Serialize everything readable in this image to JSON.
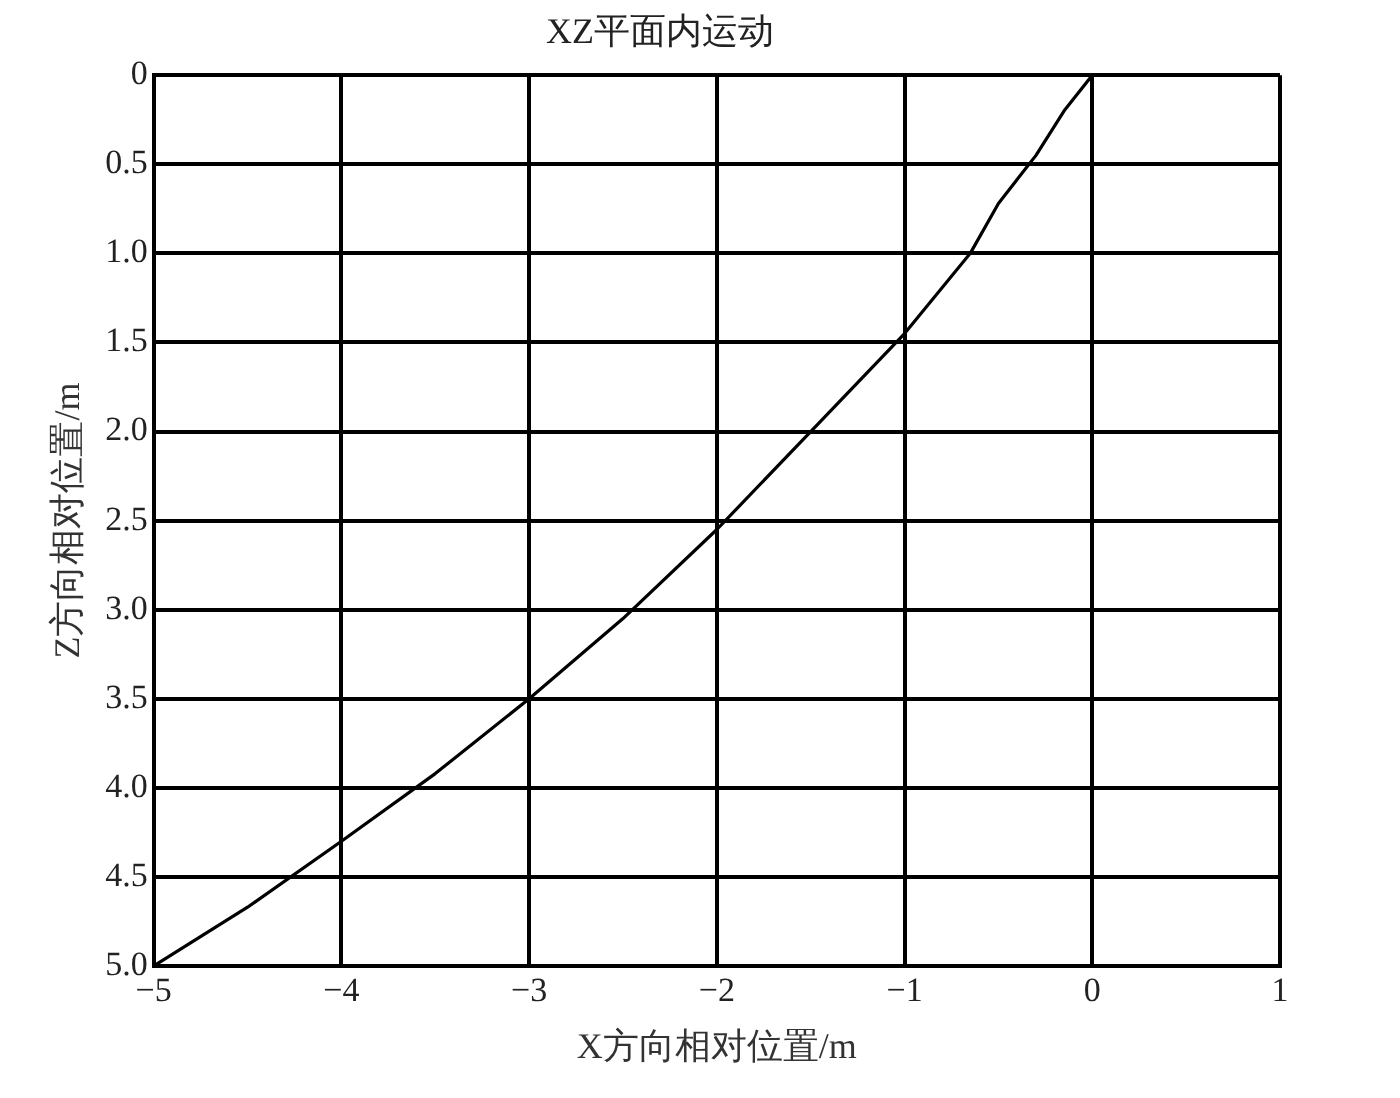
{
  "chart_data": {
    "type": "line",
    "title": "XZ平面内运动",
    "xlabel": "X方向相对位置/m",
    "ylabel": "Z方向相对位置/m",
    "xlim": [
      -5,
      1
    ],
    "xticks": [
      {
        "value": -5,
        "label": "−5"
      },
      {
        "value": -4,
        "label": "−4"
      },
      {
        "value": -3,
        "label": "−3"
      },
      {
        "value": -2,
        "label": "−2"
      },
      {
        "value": -1,
        "label": "−1"
      },
      0,
      1
    ],
    "ylim": [
      5,
      0
    ],
    "yticks": [
      0,
      0.5,
      {
        "value": 1,
        "label": "1.0"
      },
      1.5,
      {
        "value": 2,
        "label": "2.0"
      },
      2.5,
      {
        "value": 3,
        "label": "3.0"
      },
      3.5,
      {
        "value": 4,
        "label": "4.0"
      },
      4.5,
      {
        "value": 5,
        "label": "5.0"
      }
    ],
    "grid": true,
    "legend": false,
    "marker": "none",
    "line_style": "solid",
    "series": [
      {
        "color": "#000000",
        "x": [
          0,
          -0.15,
          -0.3,
          -0.5,
          -0.65,
          -1,
          -1.5,
          -2,
          -2.5,
          -3,
          -3.5,
          -4,
          -4.5,
          -5
        ],
        "values": [
          0,
          0.2,
          0.45,
          0.72,
          1.0,
          1.45,
          2.0,
          2.55,
          3.05,
          3.5,
          3.92,
          4.3,
          4.67,
          5.0
        ]
      }
    ]
  }
}
